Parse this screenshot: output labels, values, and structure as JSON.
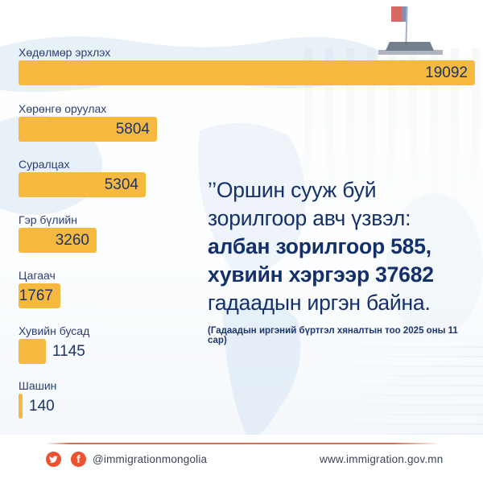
{
  "chart_data": {
    "type": "bar",
    "orientation": "horizontal",
    "categories": [
      "Хөдөлмөр эрхлэх",
      "Хөрөнгө оруулах",
      "Суралцах",
      "Гэр бүлийн",
      "Цагаач",
      "Хувийн бусад",
      "Шашин"
    ],
    "values": [
      19092,
      5804,
      5304,
      3260,
      1767,
      1145,
      140
    ],
    "xlim": [
      0,
      19092
    ],
    "grid": false,
    "legend": false,
    "bar_color": "#F6B93F",
    "label_color": "#2B3E74",
    "value_color": "#1D3368"
  },
  "message": {
    "line1": "’’Оршин сууж буй",
    "line2": "зорилгоор авч үзвэл:",
    "line3": "албан зорилгоор 585,",
    "line4": "хувийн хэргээр 37682",
    "line5": "гадаадын иргэн байна.",
    "note": "(Гадаадын иргэний бүртгэл хяналтын тоо 2025 оны 11 сар)"
  },
  "footer": {
    "icons": [
      "twitter-icon",
      "facebook-icon"
    ],
    "accent_color": "#EF5130",
    "social_handle": "@immigrationmongolia",
    "website": "www.immigration.gov.mn"
  },
  "scene": {
    "flag_icon": "mongolian-flag-icon",
    "background": "faded government palace photo over light world map"
  }
}
